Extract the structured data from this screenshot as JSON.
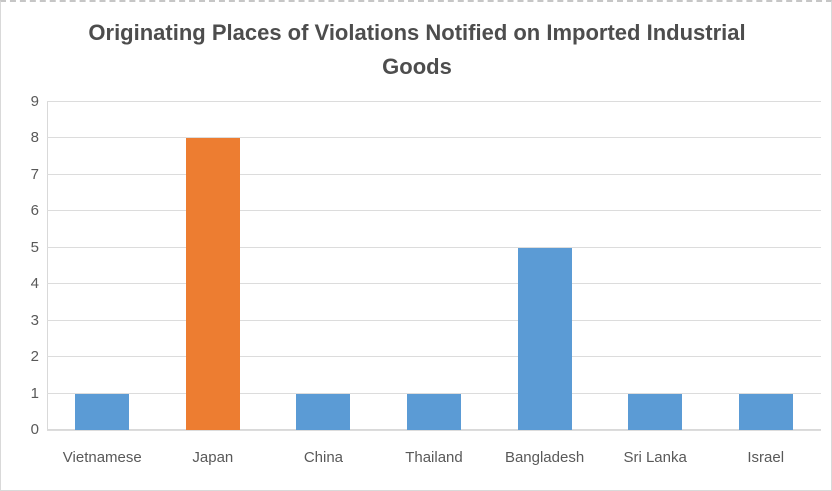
{
  "chart_data": {
    "type": "bar",
    "title": "Originating Places of Violations Notified on Imported Industrial Goods",
    "categories": [
      "Vietnamese",
      "Japan",
      "China",
      "Thailand",
      "Bangladesh",
      "Sri Lanka",
      "Israel"
    ],
    "values": [
      1,
      8,
      1,
      1,
      5,
      1,
      1
    ],
    "bar_colors": [
      "#5B9BD5",
      "#ED7D31",
      "#5B9BD5",
      "#5B9BD5",
      "#5B9BD5",
      "#5B9BD5",
      "#5B9BD5"
    ],
    "xlabel": "",
    "ylabel": "",
    "ylim": [
      0,
      9
    ],
    "yticks": [
      0,
      1,
      2,
      3,
      4,
      5,
      6,
      7,
      8,
      9
    ],
    "grid": "horizontal",
    "legend": "none",
    "colors": {
      "series_default": "#5B9BD5",
      "series_highlight": "#ED7D31",
      "title_text": "#4d4d4d",
      "axis_text": "#595959",
      "gridline": "#dcdcdc",
      "axis_line": "#d9d9d9",
      "background": "#ffffff",
      "frame_border": "#d9d9d9"
    }
  }
}
